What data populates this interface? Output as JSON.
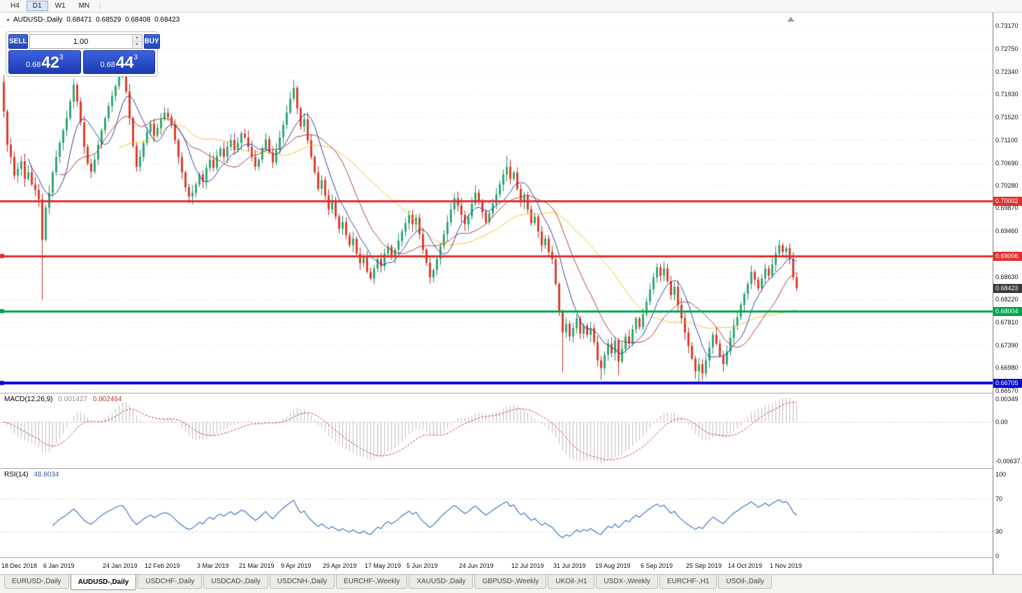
{
  "toolbar": {
    "timeframes": [
      {
        "label": "H4",
        "active": false
      },
      {
        "label": "D1",
        "active": true
      },
      {
        "label": "W1",
        "active": false
      },
      {
        "label": "MN",
        "active": false
      }
    ]
  },
  "chart_header": {
    "title": "AUDUSD-,Daily",
    "open": "0.68471",
    "high": "0.68529",
    "low": "0.68408",
    "close": "0.68423"
  },
  "trade_panel": {
    "sell_label": "SELL",
    "buy_label": "BUY",
    "volume": "1.00",
    "sell_price": {
      "small": "0.68",
      "big": "42",
      "sup": "3"
    },
    "buy_price": {
      "small": "0.68",
      "big": "44",
      "sup": "3"
    }
  },
  "chart_data": {
    "type": "candlestick",
    "symbol": "AUDUSD",
    "timeframe": "Daily",
    "first_open": 0.7215,
    "closes": [
      0.7162,
      0.7102,
      0.708,
      0.7046,
      0.7058,
      0.7072,
      0.704,
      0.7052,
      0.703,
      0.702,
      0.7003,
      0.693,
      0.6988,
      0.7015,
      0.7052,
      0.708,
      0.7105,
      0.7128,
      0.715,
      0.718,
      0.721,
      0.718,
      0.7142,
      0.7098,
      0.7068,
      0.7053,
      0.7075,
      0.7102,
      0.7128,
      0.715,
      0.7172,
      0.719,
      0.7208,
      0.7225,
      0.7232,
      0.7198,
      0.715,
      0.71,
      0.7062,
      0.708,
      0.7105,
      0.7125,
      0.714,
      0.7118,
      0.7132,
      0.7148,
      0.716,
      0.7152,
      0.7138,
      0.711,
      0.708,
      0.7052,
      0.7025,
      0.7008,
      0.7015,
      0.703,
      0.7048,
      0.7035,
      0.706,
      0.7075,
      0.706,
      0.7082,
      0.7095,
      0.708,
      0.7098,
      0.711,
      0.7092,
      0.7105,
      0.7122,
      0.7115,
      0.7098,
      0.708,
      0.7062,
      0.7075,
      0.7095,
      0.7112,
      0.7088,
      0.707,
      0.7092,
      0.7115,
      0.7138,
      0.716,
      0.7185,
      0.7205,
      0.7168,
      0.7135,
      0.7148,
      0.711,
      0.708,
      0.7052,
      0.7022,
      0.7038,
      0.701,
      0.6985,
      0.6998,
      0.6972,
      0.695,
      0.6962,
      0.6938,
      0.692,
      0.6932,
      0.6905,
      0.6888,
      0.69,
      0.6872,
      0.686,
      0.6878,
      0.6895,
      0.6882,
      0.6905,
      0.6918,
      0.69,
      0.6912,
      0.6928,
      0.6945,
      0.696,
      0.6975,
      0.6958,
      0.697,
      0.694,
      0.6912,
      0.6888,
      0.6862,
      0.6875,
      0.6895,
      0.6918,
      0.694,
      0.6962,
      0.6985,
      0.7005,
      0.6992,
      0.6975,
      0.6958,
      0.6972,
      0.6995,
      0.7015,
      0.6998,
      0.698,
      0.6962,
      0.6978,
      0.6995,
      0.7012,
      0.703,
      0.7048,
      0.7062,
      0.704,
      0.7052,
      0.7022,
      0.6998,
      0.701,
      0.6985,
      0.696,
      0.6972,
      0.6945,
      0.692,
      0.6932,
      0.6908,
      0.6895,
      0.685,
      0.68,
      0.6762,
      0.6778,
      0.6755,
      0.677,
      0.6788,
      0.676,
      0.6775,
      0.6758,
      0.677,
      0.6745,
      0.6712,
      0.6698,
      0.6722,
      0.6742,
      0.6725,
      0.6748,
      0.671,
      0.6732,
      0.6755,
      0.6742,
      0.6768,
      0.6788,
      0.6772,
      0.6795,
      0.6818,
      0.684,
      0.6862,
      0.688,
      0.6865,
      0.6878,
      0.6855,
      0.683,
      0.6845,
      0.6812,
      0.6788,
      0.6762,
      0.6738,
      0.6715,
      0.6692,
      0.6705,
      0.6688,
      0.6712,
      0.6735,
      0.6758,
      0.6742,
      0.672,
      0.6705,
      0.6728,
      0.6752,
      0.6775,
      0.679,
      0.6812,
      0.6832,
      0.685,
      0.6872,
      0.6858,
      0.6842,
      0.686,
      0.6878,
      0.6865,
      0.6885,
      0.6905,
      0.692,
      0.6908,
      0.6915,
      0.6895,
      0.6862,
      0.68423
    ],
    "low_overrides": {
      "11": 0.6822,
      "160": 0.669,
      "171": 0.6677,
      "176": 0.6685,
      "199": 0.667
    },
    "high_overrides": {
      "0": 0.7228,
      "34": 0.724,
      "83": 0.7218,
      "144": 0.7082,
      "222": 0.6929
    },
    "x_labels": [
      {
        "text": "18 Dec 2018",
        "index": 0
      },
      {
        "text": "6 Jan 2019",
        "index": 12
      },
      {
        "text": "24 Jan 2019",
        "index": 29
      },
      {
        "text": "12 Feb 2019",
        "index": 41
      },
      {
        "text": "3 Mar 2019",
        "index": 56
      },
      {
        "text": "21 Mar 2019",
        "index": 68
      },
      {
        "text": "9 Apr 2019",
        "index": 80
      },
      {
        "text": "29 Apr 2019",
        "index": 92
      },
      {
        "text": "17 May 2019",
        "index": 104
      },
      {
        "text": "5 Jun 2019",
        "index": 116
      },
      {
        "text": "24 Jun 2019",
        "index": 131
      },
      {
        "text": "12 Jul 2019",
        "index": 146
      },
      {
        "text": "31 Jul 2019",
        "index": 158
      },
      {
        "text": "19 Aug 2019",
        "index": 170
      },
      {
        "text": "6 Sep 2019",
        "index": 183
      },
      {
        "text": "25 Sep 2019",
        "index": 196
      },
      {
        "text": "14 Oct 2019",
        "index": 208
      },
      {
        "text": "1 Nov 2019",
        "index": 220
      }
    ],
    "price_ticks": [
      "0.73170",
      "0.72750",
      "0.72340",
      "0.71930",
      "0.71520",
      "0.71100",
      "0.70690",
      "0.70280",
      "0.69870",
      "0.69460",
      "0.69040",
      "0.68630",
      "0.68220",
      "0.67810",
      "0.67390",
      "0.66980",
      "0.66570"
    ],
    "levels": [
      {
        "label": "0.70002",
        "value": 0.70002,
        "color": "#E03030",
        "thickness": 3,
        "marker": false
      },
      {
        "label": "0.69006",
        "value": 0.69006,
        "color": "#E03030",
        "thickness": 3,
        "marker": true
      },
      {
        "label": "0.68004",
        "value": 0.68004,
        "color": "#00A550",
        "thickness": 3,
        "marker": true
      },
      {
        "label": "0.66705",
        "value": 0.66705,
        "color": "#0B0BD8",
        "thickness": 4,
        "marker": true
      }
    ],
    "current_price": {
      "label": "0.68423",
      "value": 0.68423,
      "badge_color": "#3A3A3A"
    },
    "moving_averages": [
      {
        "period": 34,
        "color": "#F2C12E"
      },
      {
        "period": 17,
        "color": "#B03A2E"
      },
      {
        "period": 8,
        "color": "#2B3F9E"
      }
    ],
    "colors": {
      "bull": "#2FA876",
      "bear": "#E23B2B",
      "wick_bull": "#1E8A60",
      "wick_bear": "#C22A1C",
      "grid": "#E5E5E5"
    }
  },
  "macd_panel": {
    "label": "MACD(12,26,9)",
    "value_main": "0.001427",
    "value_signal": "0.002464",
    "axis_top": "0.00349",
    "axis_zero": "0.00",
    "axis_bottom": "-0.00637",
    "fast": 12,
    "slow": 26,
    "signal": 9,
    "colors": {
      "histogram": "#BDBDBD",
      "signal": "#CC3333"
    }
  },
  "rsi_panel": {
    "label": "RSI(14)",
    "value": "48.8034",
    "axis": [
      "100",
      "70",
      "30",
      "0"
    ],
    "period": 14,
    "levels": [
      70,
      30
    ],
    "color": "#3A77C3"
  },
  "tabs": [
    {
      "label": "EURUSD-,Daily",
      "active": false
    },
    {
      "label": "AUDUSD-,Daily",
      "active": true
    },
    {
      "label": "USDCHF-,Daily",
      "active": false
    },
    {
      "label": "USDCAD-,Daily",
      "active": false
    },
    {
      "label": "USDCNH-,Daily",
      "active": false
    },
    {
      "label": "EURCHF-,Weekly",
      "active": false
    },
    {
      "label": "XAUUSD-,Daily",
      "active": false
    },
    {
      "label": "GBPUSD-,Weekly",
      "active": false
    },
    {
      "label": "UKOil-,H1",
      "active": false
    },
    {
      "label": "USDX-,Weekly",
      "active": false
    },
    {
      "label": "EURCHF-,H1",
      "active": false
    },
    {
      "label": "USOil-,Daily",
      "active": false
    }
  ]
}
